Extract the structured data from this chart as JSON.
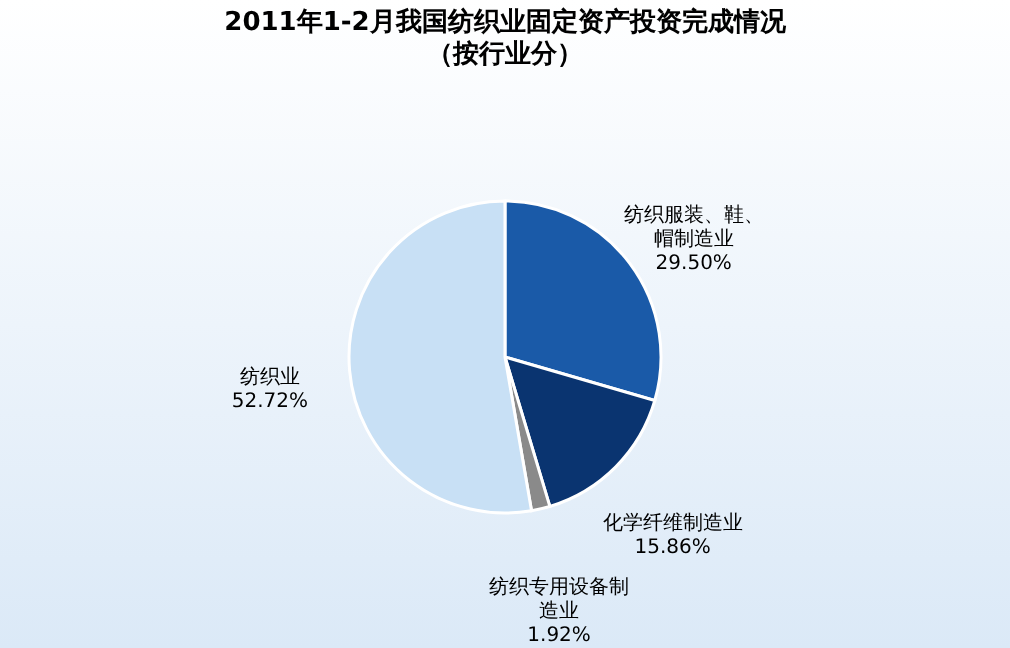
{
  "chart_data": {
    "type": "pie",
    "title": "2011年1-2月我国纺织业固定资产投资完成情况",
    "subtitle": "（按行业分）",
    "categories": [
      "纺织服装、鞋、帽制造业",
      "化学纤维制造业",
      "纺织专用设备制造业",
      "纺织业"
    ],
    "values": [
      29.5,
      15.86,
      1.92,
      52.72
    ],
    "colors": [
      "#1a5aa8",
      "#0a3470",
      "#8a8a8a",
      "#c8e0f5"
    ],
    "value_labels": [
      "29.50%",
      "15.86%",
      "1.92%",
      "52.72%"
    ]
  }
}
